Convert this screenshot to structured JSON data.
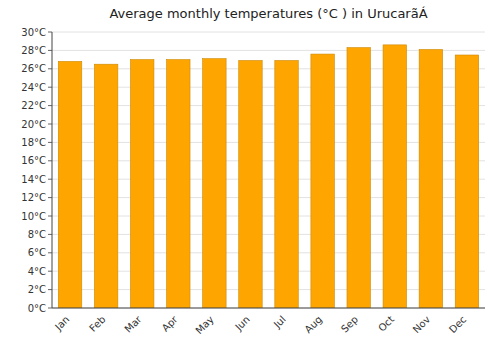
{
  "chart_data": {
    "type": "bar",
    "title": "Average monthly temperatures (°C ) in UrucarãÁ",
    "categories": [
      "Jan",
      "Feb",
      "Mar",
      "Apr",
      "May",
      "Jun",
      "Jul",
      "Aug",
      "Sep",
      "Oct",
      "Nov",
      "Dec"
    ],
    "values": [
      26.8,
      26.5,
      27.0,
      27.0,
      27.1,
      26.9,
      26.9,
      27.6,
      28.3,
      28.6,
      28.1,
      27.5
    ],
    "color": "#FFA500",
    "ylim": [
      0,
      30
    ],
    "yticks": [
      {
        "value": 0,
        "label": "0°C"
      },
      {
        "value": 2,
        "label": "2°C"
      },
      {
        "value": 4,
        "label": "4°C"
      },
      {
        "value": 6,
        "label": "6°C"
      },
      {
        "value": 8,
        "label": "8°C"
      },
      {
        "value": 10,
        "label": "10°C"
      },
      {
        "value": 12,
        "label": "12°C"
      },
      {
        "value": 14,
        "label": "14°C"
      },
      {
        "value": 16,
        "label": "16°C"
      },
      {
        "value": 18,
        "label": "18°C"
      },
      {
        "value": 20,
        "label": "20°C"
      },
      {
        "value": 22,
        "label": "22°C"
      },
      {
        "value": 24,
        "label": "24°C"
      },
      {
        "value": 26,
        "label": "26°C"
      },
      {
        "value": 28,
        "label": "28°C"
      },
      {
        "value": 30,
        "label": "30°C"
      }
    ],
    "grid": true
  }
}
